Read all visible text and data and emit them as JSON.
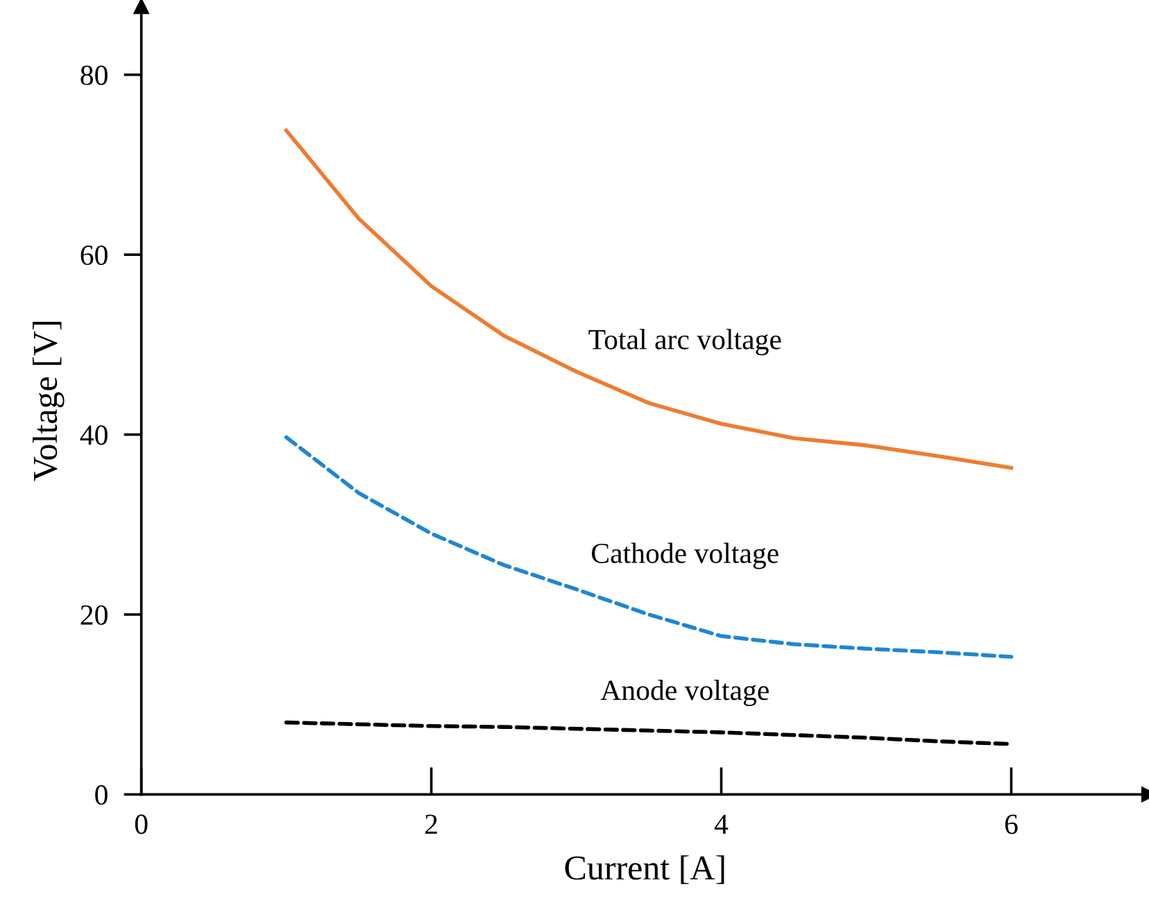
{
  "chart_data": {
    "type": "line",
    "xlabel": "Current [A]",
    "ylabel": "Voltage [V]",
    "x": [
      1,
      1.5,
      2,
      2.5,
      3,
      3.5,
      4,
      4.5,
      5,
      5.5,
      6
    ],
    "series": [
      {
        "name": "Total arc voltage",
        "color": "#ed7d31",
        "line_style": "solid",
        "values": [
          73.8,
          64,
          56.5,
          51,
          47,
          43.5,
          41.2,
          39.6,
          38.8,
          37.6,
          36.3
        ]
      },
      {
        "name": "Cathode voltage",
        "color": "#1f86d4",
        "line_style": "dashed",
        "values": [
          39.7,
          33.5,
          29,
          25.5,
          22.8,
          20,
          17.6,
          16.7,
          16.2,
          15.8,
          15.3
        ]
      },
      {
        "name": "Anode voltage",
        "color": "#000000",
        "line_style": "dashed",
        "values": [
          8.0,
          7.8,
          7.6,
          7.5,
          7.3,
          7.1,
          6.9,
          6.6,
          6.3,
          5.9,
          5.6
        ]
      }
    ],
    "xlim": [
      0,
      6.95
    ],
    "ylim": [
      0,
      87.6
    ],
    "xticks": [
      0,
      2,
      4,
      6
    ],
    "yticks": [
      0,
      20,
      40,
      60,
      80
    ],
    "grid": false,
    "legend": false,
    "marker": "none"
  }
}
